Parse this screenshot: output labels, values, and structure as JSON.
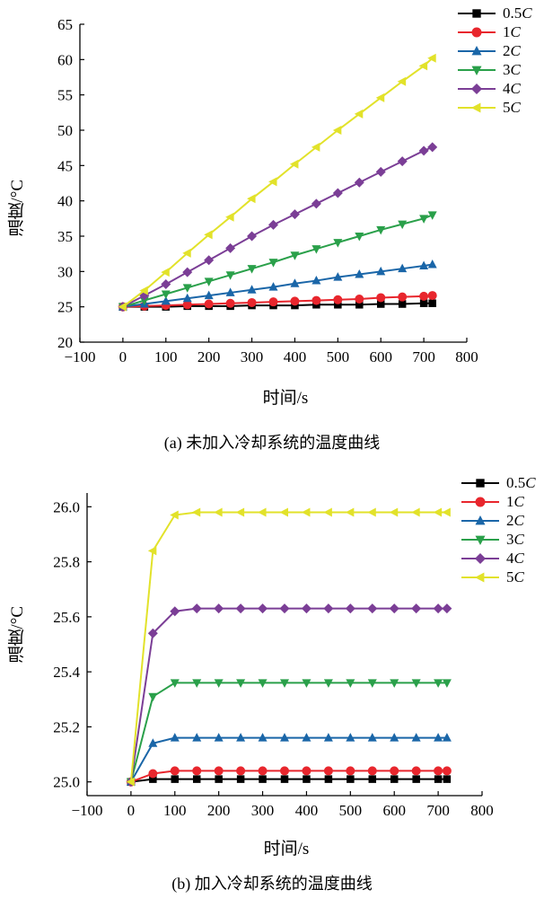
{
  "colors": {
    "0.5C": "#000000",
    "1C": "#e8262d",
    "2C": "#1a66a8",
    "3C": "#2aa04a",
    "4C": "#7b3e96",
    "5C": "#e2e22a"
  },
  "chart_data": [
    {
      "type": "line",
      "caption": "(a) 未加入冷却系统的温度曲线",
      "xlabel": "时间/s",
      "ylabel": "温度/°C",
      "xlim": [
        -100,
        800
      ],
      "ylim": [
        20,
        65
      ],
      "xticks": [
        "−100",
        "0",
        "100",
        "200",
        "300",
        "400",
        "500",
        "600",
        "700",
        "800"
      ],
      "yticks": [
        "20",
        "25",
        "30",
        "35",
        "40",
        "45",
        "50",
        "55",
        "60",
        "65"
      ],
      "legend_position": "top-right",
      "x": [
        0,
        50,
        100,
        150,
        200,
        250,
        300,
        350,
        400,
        450,
        500,
        550,
        600,
        650,
        700,
        720
      ],
      "series": [
        {
          "name": "0.5",
          "unit": "C",
          "key": "0.5C",
          "marker": "square",
          "values": [
            25.0,
            25.0,
            25.0,
            25.1,
            25.1,
            25.1,
            25.2,
            25.2,
            25.2,
            25.3,
            25.3,
            25.3,
            25.4,
            25.4,
            25.5,
            25.5
          ]
        },
        {
          "name": "1",
          "unit": "C",
          "key": "1C",
          "marker": "circle",
          "values": [
            25.0,
            25.1,
            25.2,
            25.3,
            25.4,
            25.5,
            25.6,
            25.7,
            25.8,
            25.9,
            26.0,
            26.1,
            26.3,
            26.4,
            26.5,
            26.6
          ]
        },
        {
          "name": "2",
          "unit": "C",
          "key": "2C",
          "marker": "triangle-up",
          "values": [
            25.0,
            25.4,
            25.8,
            26.2,
            26.6,
            27.0,
            27.4,
            27.8,
            28.3,
            28.7,
            29.2,
            29.6,
            30.0,
            30.4,
            30.8,
            31.0
          ]
        },
        {
          "name": "3",
          "unit": "C",
          "key": "3C",
          "marker": "triangle-down",
          "values": [
            25.0,
            25.9,
            26.8,
            27.7,
            28.6,
            29.5,
            30.4,
            31.3,
            32.3,
            33.2,
            34.1,
            35.0,
            35.9,
            36.7,
            37.5,
            38.0
          ]
        },
        {
          "name": "4",
          "unit": "C",
          "key": "4C",
          "marker": "diamond",
          "values": [
            25.0,
            26.6,
            28.2,
            29.9,
            31.6,
            33.3,
            35.0,
            36.6,
            38.1,
            39.6,
            41.1,
            42.6,
            44.1,
            45.6,
            47.1,
            47.6
          ]
        },
        {
          "name": "5",
          "unit": "C",
          "key": "5C",
          "marker": "triangle-left",
          "values": [
            25.0,
            27.3,
            29.9,
            32.6,
            35.2,
            37.7,
            40.3,
            42.7,
            45.2,
            47.6,
            50.0,
            52.3,
            54.6,
            56.9,
            59.1,
            60.2
          ]
        }
      ]
    },
    {
      "type": "line",
      "caption": "(b) 加入冷却系统的温度曲线",
      "xlabel": "时间/s",
      "ylabel": "温度/°C",
      "xlim": [
        -100,
        800
      ],
      "ylim": [
        24.95,
        26.05
      ],
      "xticks": [
        "−100",
        "0",
        "100",
        "200",
        "300",
        "400",
        "500",
        "600",
        "700",
        "800"
      ],
      "yticks": [
        "25.0",
        "25.2",
        "25.4",
        "25.6",
        "25.8",
        "26.0"
      ],
      "legend_position": "top-right",
      "x": [
        0,
        50,
        100,
        150,
        200,
        250,
        300,
        350,
        400,
        450,
        500,
        550,
        600,
        650,
        700,
        720
      ],
      "series": [
        {
          "name": "0.5",
          "unit": "C",
          "key": "0.5C",
          "marker": "square",
          "values": [
            25.0,
            25.01,
            25.01,
            25.01,
            25.01,
            25.01,
            25.01,
            25.01,
            25.01,
            25.01,
            25.01,
            25.01,
            25.01,
            25.01,
            25.01,
            25.01
          ]
        },
        {
          "name": "1",
          "unit": "C",
          "key": "1C",
          "marker": "circle",
          "values": [
            25.0,
            25.03,
            25.04,
            25.04,
            25.04,
            25.04,
            25.04,
            25.04,
            25.04,
            25.04,
            25.04,
            25.04,
            25.04,
            25.04,
            25.04,
            25.04
          ]
        },
        {
          "name": "2",
          "unit": "C",
          "key": "2C",
          "marker": "triangle-up",
          "values": [
            25.0,
            25.14,
            25.16,
            25.16,
            25.16,
            25.16,
            25.16,
            25.16,
            25.16,
            25.16,
            25.16,
            25.16,
            25.16,
            25.16,
            25.16,
            25.16
          ]
        },
        {
          "name": "3",
          "unit": "C",
          "key": "3C",
          "marker": "triangle-down",
          "values": [
            25.0,
            25.31,
            25.36,
            25.36,
            25.36,
            25.36,
            25.36,
            25.36,
            25.36,
            25.36,
            25.36,
            25.36,
            25.36,
            25.36,
            25.36,
            25.36
          ]
        },
        {
          "name": "4",
          "unit": "C",
          "key": "4C",
          "marker": "diamond",
          "values": [
            25.0,
            25.54,
            25.62,
            25.63,
            25.63,
            25.63,
            25.63,
            25.63,
            25.63,
            25.63,
            25.63,
            25.63,
            25.63,
            25.63,
            25.63,
            25.63
          ]
        },
        {
          "name": "5",
          "unit": "C",
          "key": "5C",
          "marker": "triangle-left",
          "values": [
            25.0,
            25.84,
            25.97,
            25.98,
            25.98,
            25.98,
            25.98,
            25.98,
            25.98,
            25.98,
            25.98,
            25.98,
            25.98,
            25.98,
            25.98,
            25.98
          ]
        }
      ]
    }
  ]
}
